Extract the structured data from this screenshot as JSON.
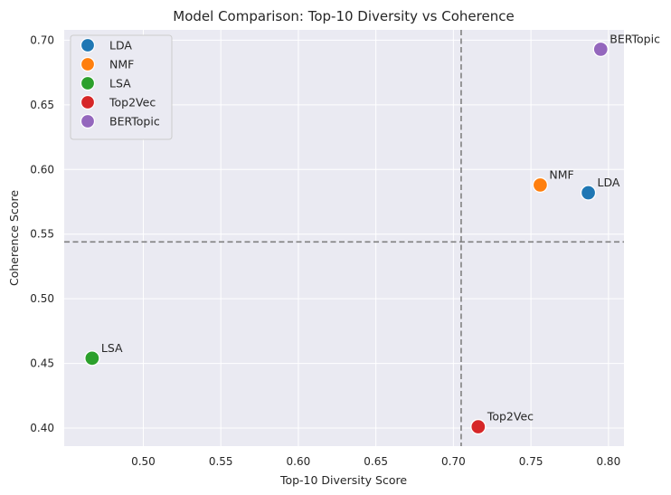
{
  "chart_data": {
    "type": "scatter",
    "title": "Model Comparison: Top-10 Diversity vs Coherence",
    "xlabel": "Top-10 Diversity Score",
    "ylabel": "Coherence Score",
    "xlim": [
      0.449,
      0.81
    ],
    "ylim": [
      0.386,
      0.708
    ],
    "xticks": [
      0.5,
      0.55,
      0.6,
      0.65,
      0.7,
      0.75,
      0.8
    ],
    "xtick_labels": [
      "0.50",
      "0.55",
      "0.60",
      "0.65",
      "0.70",
      "0.75",
      "0.80"
    ],
    "yticks": [
      0.4,
      0.45,
      0.5,
      0.55,
      0.6,
      0.65,
      0.7
    ],
    "ytick_labels": [
      "0.40",
      "0.45",
      "0.50",
      "0.55",
      "0.60",
      "0.65",
      "0.70"
    ],
    "grid": true,
    "legend_position": "top-left",
    "reference_lines": {
      "x": 0.705,
      "y": 0.544
    },
    "series": [
      {
        "name": "LDA",
        "x": 0.787,
        "y": 0.582,
        "color": "#1f77b4"
      },
      {
        "name": "NMF",
        "x": 0.756,
        "y": 0.588,
        "color": "#ff7f0e"
      },
      {
        "name": "LSA",
        "x": 0.467,
        "y": 0.454,
        "color": "#2ca02c"
      },
      {
        "name": "Top2Vec",
        "x": 0.716,
        "y": 0.401,
        "color": "#d62728"
      },
      {
        "name": "BERTopic",
        "x": 0.795,
        "y": 0.693,
        "color": "#9467bd"
      }
    ],
    "colors": {
      "background": "#eaeaf2",
      "grid": "#ffffff",
      "reference_line": "#808080"
    }
  }
}
